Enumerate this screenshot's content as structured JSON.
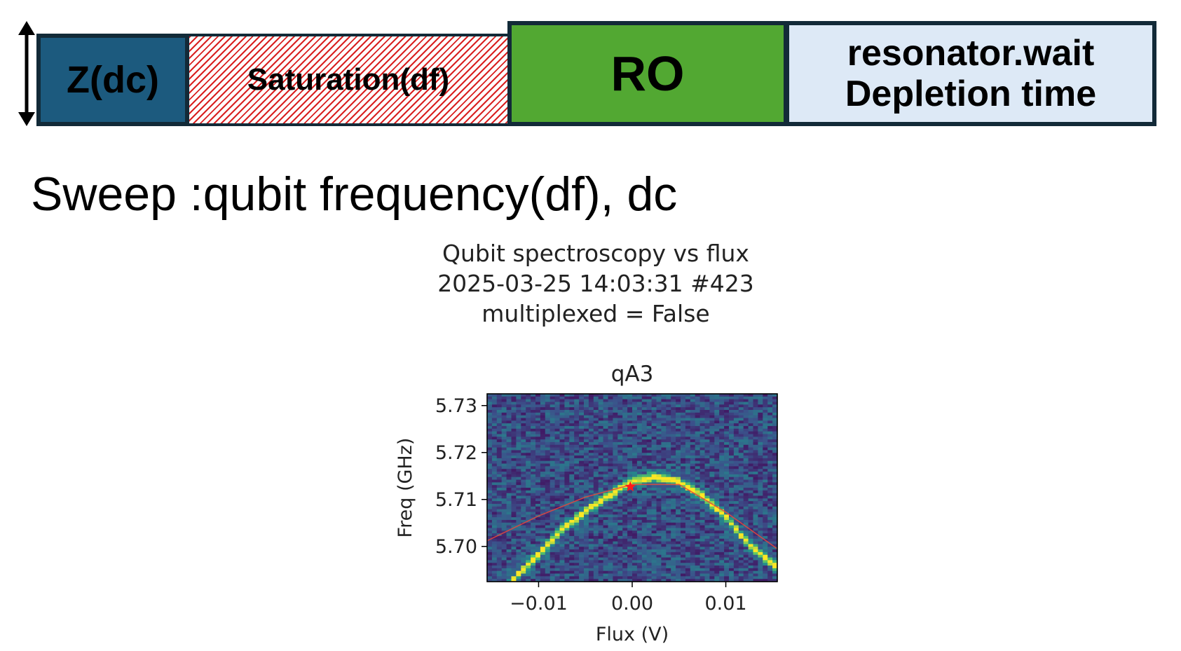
{
  "sequence": {
    "blocks": [
      {
        "id": "z",
        "label": "Z(dc)",
        "color": "#1c5a7e"
      },
      {
        "id": "saturation",
        "label": "Saturation(df)",
        "color": "#d92020"
      },
      {
        "id": "ro",
        "label": "RO",
        "color": "#52a832"
      },
      {
        "id": "wait",
        "label_line1": "resonator.wait",
        "label_line2": "Depletion time",
        "color": "#dde9f6"
      }
    ]
  },
  "sweep_text": "Sweep :qubit frequency(df), dc",
  "figure": {
    "title_lines": [
      "Qubit spectroscopy vs flux",
      "2025-03-25 14:03:31 #423",
      "multiplexed = False"
    ]
  },
  "chart_data": {
    "type": "heatmap",
    "title": "qA3",
    "xlabel": "Flux (V)",
    "ylabel": "Freq (GHz)",
    "xlim": [
      -0.0155,
      0.0155
    ],
    "ylim": [
      5.6925,
      5.7325
    ],
    "xticks": [
      -0.01,
      0.0,
      0.01
    ],
    "xtick_labels": [
      "−0.01",
      "0.00",
      "0.01"
    ],
    "yticks": [
      5.7,
      5.71,
      5.72,
      5.73
    ],
    "ytick_labels": [
      "5.70",
      "5.71",
      "5.72",
      "5.73"
    ],
    "colormap": "viridis",
    "grid": false,
    "measured_peak_curve": {
      "x": [
        -0.0125,
        -0.01,
        -0.0075,
        -0.005,
        -0.0025,
        0.0,
        0.0025,
        0.005,
        0.0075,
        0.01,
        0.0125,
        0.015
      ],
      "y": [
        5.6933,
        5.6983,
        5.7035,
        5.7075,
        5.7108,
        5.7138,
        5.7148,
        5.7138,
        5.7108,
        5.7063,
        5.7003,
        5.6963
      ]
    },
    "fit_curve": {
      "color": "#e8453c",
      "x": [
        -0.0155,
        -0.01,
        -0.005,
        0.0,
        0.005,
        0.01,
        0.0155
      ],
      "y": [
        5.7012,
        5.7065,
        5.7105,
        5.7132,
        5.7132,
        5.7073,
        5.6995
      ]
    },
    "marker": {
      "x": -0.0002,
      "y": 5.7127,
      "symbol": "star",
      "color": "#ff1a1a"
    }
  }
}
